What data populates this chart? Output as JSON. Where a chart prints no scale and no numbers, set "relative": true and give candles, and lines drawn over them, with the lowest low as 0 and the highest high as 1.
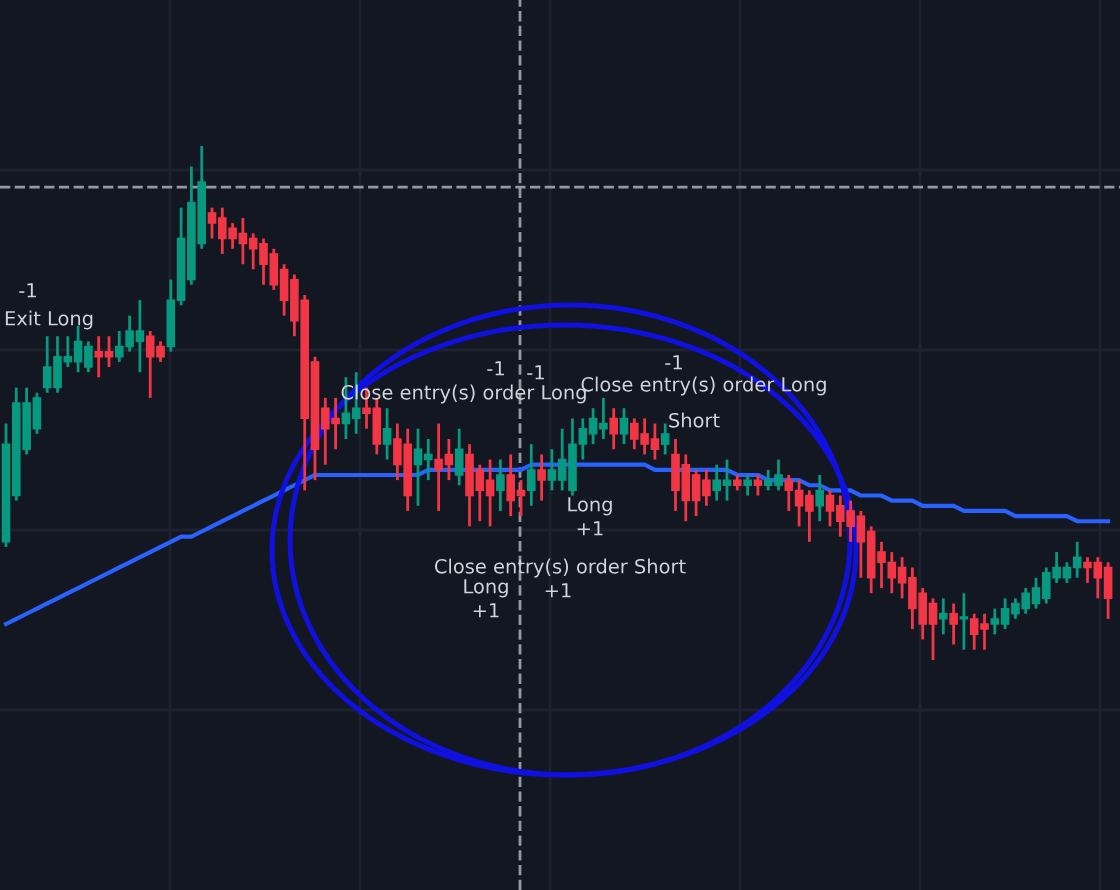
{
  "chart_data": {
    "type": "candlestick",
    "relative": true,
    "grid": true,
    "categories": [
      null,
      null,
      null,
      null,
      null,
      null,
      null,
      null,
      null,
      null,
      null,
      null,
      null,
      null,
      null,
      null,
      null,
      null,
      null,
      null,
      null,
      null,
      null,
      null,
      null,
      null,
      null,
      null,
      null,
      null,
      null,
      null,
      null,
      null,
      null,
      null,
      null,
      null,
      null,
      null,
      null,
      null,
      null,
      null,
      null,
      null,
      null,
      null,
      null,
      null,
      null,
      null,
      null,
      null,
      null,
      null,
      null,
      null,
      null,
      null,
      null,
      null,
      null,
      null,
      null,
      null,
      null,
      null,
      null,
      null,
      null,
      null,
      null,
      null,
      null,
      null,
      null,
      null,
      null,
      null,
      null,
      null,
      null,
      null,
      null,
      null,
      null,
      null,
      null,
      null,
      null,
      null,
      null,
      null,
      null,
      null,
      null,
      null,
      null,
      null,
      null,
      null,
      null,
      null,
      null,
      null,
      null,
      null
    ],
    "ohlc": [
      [
        0.23,
        0.46,
        0.22,
        0.42
      ],
      [
        0.32,
        0.53,
        0.31,
        0.5
      ],
      [
        0.41,
        0.53,
        0.4,
        0.5
      ],
      [
        0.45,
        0.52,
        0.44,
        0.51
      ],
      [
        0.53,
        0.63,
        0.52,
        0.57
      ],
      [
        0.53,
        0.63,
        0.52,
        0.59
      ],
      [
        0.58,
        0.63,
        0.57,
        0.59
      ],
      [
        0.58,
        0.65,
        0.56,
        0.62
      ],
      [
        0.57,
        0.62,
        0.56,
        0.61
      ],
      [
        0.6,
        0.63,
        0.55,
        0.59
      ],
      [
        0.6,
        0.63,
        0.57,
        0.59
      ],
      [
        0.59,
        0.64,
        0.58,
        0.61
      ],
      [
        0.61,
        0.67,
        0.6,
        0.64
      ],
      [
        0.62,
        0.7,
        0.56,
        0.64
      ],
      [
        0.63,
        0.64,
        0.51,
        0.59
      ],
      [
        0.61,
        0.62,
        0.58,
        0.59
      ],
      [
        0.61,
        0.74,
        0.6,
        0.7
      ],
      [
        0.7,
        0.88,
        0.69,
        0.82
      ],
      [
        0.74,
        0.96,
        0.73,
        0.89
      ],
      [
        0.81,
        1.0,
        0.8,
        0.93
      ],
      [
        0.87,
        0.88,
        0.82,
        0.85
      ],
      [
        0.86,
        0.88,
        0.79,
        0.82
      ],
      [
        0.84,
        0.85,
        0.8,
        0.82
      ],
      [
        0.83,
        0.86,
        0.77,
        0.81
      ],
      [
        0.82,
        0.83,
        0.76,
        0.8
      ],
      [
        0.81,
        0.82,
        0.73,
        0.77
      ],
      [
        0.79,
        0.8,
        0.72,
        0.73
      ],
      [
        0.76,
        0.77,
        0.67,
        0.7
      ],
      [
        0.74,
        0.75,
        0.63,
        0.66
      ],
      [
        0.7,
        0.71,
        0.33,
        0.47
      ],
      [
        0.58,
        0.59,
        0.35,
        0.41
      ],
      [
        0.49,
        0.51,
        0.38,
        0.45
      ],
      [
        0.47,
        0.51,
        0.41,
        0.46
      ],
      [
        0.46,
        0.55,
        0.43,
        0.48
      ],
      [
        0.47,
        0.56,
        0.44,
        0.49
      ],
      [
        0.49,
        0.53,
        0.45,
        0.48
      ],
      [
        0.49,
        0.51,
        0.4,
        0.42
      ],
      [
        0.42,
        0.49,
        0.39,
        0.45
      ],
      [
        0.43,
        0.46,
        0.35,
        0.38
      ],
      [
        0.42,
        0.45,
        0.29,
        0.32
      ],
      [
        0.38,
        0.45,
        0.3,
        0.41
      ],
      [
        0.39,
        0.43,
        0.35,
        0.4
      ],
      [
        0.39,
        0.46,
        0.29,
        0.37
      ],
      [
        0.4,
        0.43,
        0.35,
        0.38
      ],
      [
        0.36,
        0.45,
        0.34,
        0.41
      ],
      [
        0.4,
        0.42,
        0.26,
        0.32
      ],
      [
        0.37,
        0.38,
        0.27,
        0.33
      ],
      [
        0.35,
        0.39,
        0.26,
        0.32
      ],
      [
        0.33,
        0.39,
        0.29,
        0.36
      ],
      [
        0.36,
        0.4,
        0.28,
        0.31
      ],
      [
        0.33,
        0.35,
        0.28,
        0.32
      ],
      [
        0.33,
        0.42,
        0.3,
        0.37
      ],
      [
        0.37,
        0.4,
        0.31,
        0.35
      ],
      [
        0.35,
        0.41,
        0.33,
        0.37
      ],
      [
        0.35,
        0.45,
        0.33,
        0.39
      ],
      [
        0.33,
        0.47,
        0.32,
        0.42
      ],
      [
        0.42,
        0.47,
        0.39,
        0.45
      ],
      [
        0.44,
        0.49,
        0.42,
        0.47
      ],
      [
        0.45,
        0.51,
        0.43,
        0.46
      ],
      [
        0.47,
        0.49,
        0.41,
        0.44
      ],
      [
        0.44,
        0.49,
        0.42,
        0.47
      ],
      [
        0.46,
        0.47,
        0.41,
        0.43
      ],
      [
        0.44,
        0.47,
        0.4,
        0.42
      ],
      [
        0.43,
        0.46,
        0.39,
        0.41
      ],
      [
        0.42,
        0.46,
        0.4,
        0.44
      ],
      [
        0.4,
        0.43,
        0.29,
        0.33
      ],
      [
        0.38,
        0.4,
        0.27,
        0.31
      ],
      [
        0.36,
        0.37,
        0.28,
        0.31
      ],
      [
        0.35,
        0.37,
        0.3,
        0.32
      ],
      [
        0.33,
        0.38,
        0.31,
        0.35
      ],
      [
        0.34,
        0.39,
        0.31,
        0.35
      ],
      [
        0.35,
        0.36,
        0.33,
        0.34
      ],
      [
        0.34,
        0.36,
        0.32,
        0.35
      ],
      [
        0.35,
        0.36,
        0.32,
        0.34
      ],
      [
        0.34,
        0.37,
        0.33,
        0.35
      ],
      [
        0.34,
        0.39,
        0.33,
        0.36
      ],
      [
        0.35,
        0.36,
        0.29,
        0.33
      ],
      [
        0.33,
        0.35,
        0.26,
        0.3
      ],
      [
        0.32,
        0.33,
        0.23,
        0.29
      ],
      [
        0.3,
        0.36,
        0.27,
        0.33
      ],
      [
        0.32,
        0.33,
        0.26,
        0.29
      ],
      [
        0.3,
        0.32,
        0.24,
        0.27
      ],
      [
        0.29,
        0.31,
        0.23,
        0.26
      ],
      [
        0.28,
        0.29,
        0.16,
        0.23
      ],
      [
        0.25,
        0.26,
        0.13,
        0.16
      ],
      [
        0.21,
        0.23,
        0.14,
        0.19
      ],
      [
        0.19,
        0.21,
        0.13,
        0.16
      ],
      [
        0.18,
        0.2,
        0.12,
        0.15
      ],
      [
        0.16,
        0.18,
        0.06,
        0.1
      ],
      [
        0.13,
        0.14,
        0.04,
        0.07
      ],
      [
        0.11,
        0.12,
        0.0,
        0.07
      ],
      [
        0.08,
        0.12,
        0.05,
        0.09
      ],
      [
        0.09,
        0.11,
        0.03,
        0.07
      ],
      [
        0.08,
        0.13,
        0.02,
        0.08
      ],
      [
        0.08,
        0.09,
        0.02,
        0.05
      ],
      [
        0.07,
        0.09,
        0.02,
        0.06
      ],
      [
        0.07,
        0.1,
        0.05,
        0.08
      ],
      [
        0.07,
        0.12,
        0.06,
        0.1
      ],
      [
        0.09,
        0.12,
        0.08,
        0.11
      ],
      [
        0.1,
        0.14,
        0.09,
        0.13
      ],
      [
        0.11,
        0.16,
        0.1,
        0.14
      ],
      [
        0.12,
        0.18,
        0.11,
        0.17
      ],
      [
        0.16,
        0.21,
        0.15,
        0.18
      ],
      [
        0.16,
        0.19,
        0.15,
        0.18
      ],
      [
        0.18,
        0.23,
        0.16,
        0.2
      ],
      [
        0.19,
        0.2,
        0.15,
        0.18
      ],
      [
        0.19,
        0.2,
        0.12,
        0.16
      ],
      [
        0.18,
        0.19,
        0.08,
        0.12
      ]
    ],
    "series": [
      {
        "type": "line",
        "color": "#2962ff",
        "values": [
          0.07,
          0.08,
          0.09,
          0.1,
          0.11,
          0.12,
          0.13,
          0.14,
          0.15,
          0.16,
          0.17,
          0.18,
          0.19,
          0.2,
          0.21,
          0.22,
          0.23,
          0.24,
          0.24,
          0.25,
          0.26,
          0.27,
          0.28,
          0.29,
          0.3,
          0.31,
          0.32,
          0.33,
          0.34,
          0.35,
          0.36,
          0.36,
          0.36,
          0.36,
          0.36,
          0.36,
          0.36,
          0.36,
          0.36,
          0.36,
          0.36,
          0.37,
          0.37,
          0.37,
          0.37,
          0.37,
          0.37,
          0.37,
          0.37,
          0.37,
          0.37,
          0.38,
          0.38,
          0.38,
          0.38,
          0.38,
          0.38,
          0.38,
          0.38,
          0.38,
          0.38,
          0.38,
          0.38,
          0.37,
          0.37,
          0.37,
          0.37,
          0.37,
          0.37,
          0.37,
          0.37,
          0.36,
          0.36,
          0.36,
          0.35,
          0.35,
          0.35,
          0.35,
          0.34,
          0.34,
          0.33,
          0.33,
          0.33,
          0.32,
          0.32,
          0.32,
          0.31,
          0.31,
          0.31,
          0.3,
          0.3,
          0.3,
          0.3,
          0.29,
          0.29,
          0.29,
          0.29,
          0.29,
          0.28,
          0.28,
          0.28,
          0.28,
          0.28,
          0.28,
          0.27,
          0.27,
          0.27,
          0.27
        ]
      }
    ],
    "ref_lines": [
      {
        "axis": "y",
        "value": 0.92,
        "line_style": "dashed",
        "color": "#9598a1"
      }
    ],
    "annotations": [
      "-1",
      "Exit Long",
      "-1",
      "-1",
      "Close entry(s) order Long",
      "-1",
      "Close entry(s) order Long",
      "Short",
      "Long",
      "+1",
      "Close entry(s) order Short",
      "Long",
      "+1",
      "+1"
    ]
  }
}
